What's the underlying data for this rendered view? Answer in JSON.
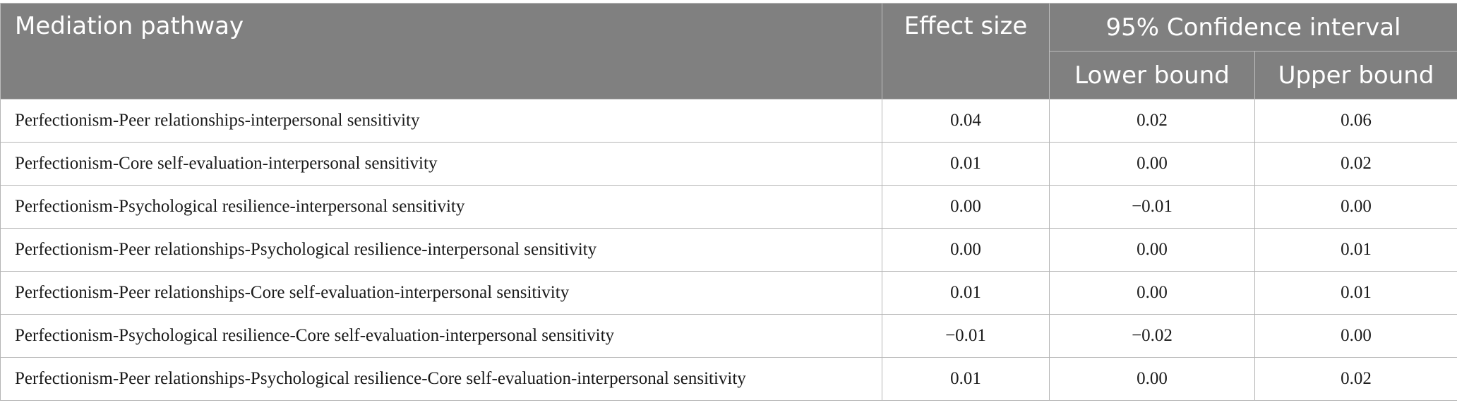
{
  "table": {
    "headers": {
      "pathway": "Mediation pathway",
      "effect_size": "Effect size",
      "ci": "95% Confidence interval",
      "lower": "Lower bound",
      "upper": "Upper bound"
    },
    "rows": [
      {
        "pathway": "Perfectionism-Peer relationships-interpersonal sensitivity",
        "effect": "0.04",
        "lower": "0.02",
        "upper": "0.06"
      },
      {
        "pathway": "Perfectionism-Core self-evaluation-interpersonal sensitivity",
        "effect": "0.01",
        "lower": "0.00",
        "upper": "0.02"
      },
      {
        "pathway": "Perfectionism-Psychological resilience-interpersonal sensitivity",
        "effect": "0.00",
        "lower": "−0.01",
        "upper": "0.00"
      },
      {
        "pathway": "Perfectionism-Peer relationships-Psychological resilience-interpersonal sensitivity",
        "effect": "0.00",
        "lower": "0.00",
        "upper": "0.01"
      },
      {
        "pathway": "Perfectionism-Peer relationships-Core self-evaluation-interpersonal sensitivity",
        "effect": "0.01",
        "lower": "0.00",
        "upper": "0.01"
      },
      {
        "pathway": "Perfectionism-Psychological resilience-Core self-evaluation-interpersonal sensitivity",
        "effect": "−0.01",
        "lower": "−0.02",
        "upper": "0.00"
      },
      {
        "pathway": "Perfectionism-Peer relationships-Psychological resilience-Core self-evaluation-interpersonal sensitivity",
        "effect": "0.01",
        "lower": "0.00",
        "upper": "0.02"
      }
    ]
  }
}
